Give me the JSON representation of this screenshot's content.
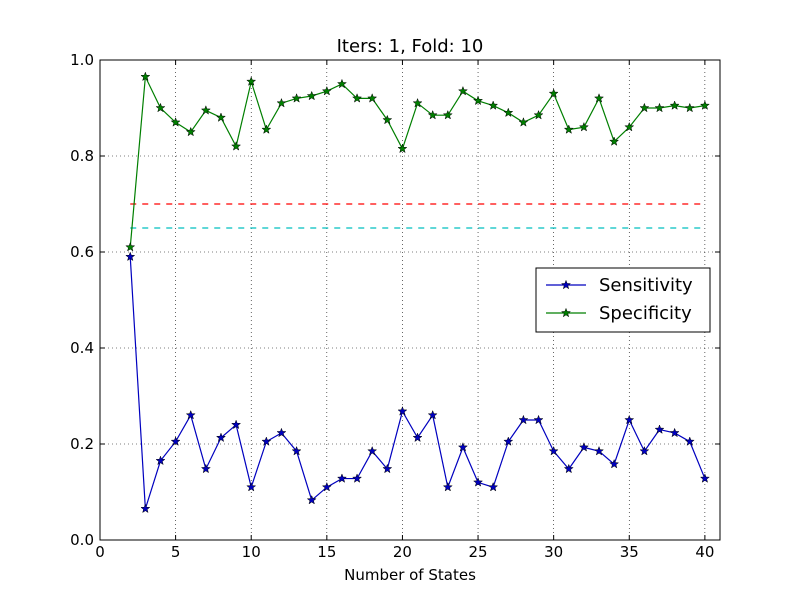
{
  "chart_data": {
    "type": "line",
    "title": "Iters: 1, Fold: 10",
    "xlabel": "Number of States",
    "ylabel": "",
    "xlim": [
      0,
      41
    ],
    "ylim": [
      0.0,
      1.0
    ],
    "xticks": [
      0,
      5,
      10,
      15,
      20,
      25,
      30,
      35,
      40
    ],
    "yticks": [
      0.0,
      0.2,
      0.4,
      0.6,
      0.8,
      1.0
    ],
    "xtick_labels": [
      "0",
      "5",
      "10",
      "15",
      "20",
      "25",
      "30",
      "35",
      "40"
    ],
    "ytick_labels": [
      "0.0",
      "0.2",
      "0.4",
      "0.6",
      "0.8",
      "1.0"
    ],
    "grid": true,
    "legend_position": "center-right",
    "x": [
      2,
      3,
      4,
      5,
      6,
      7,
      8,
      9,
      10,
      11,
      12,
      13,
      14,
      15,
      16,
      17,
      18,
      19,
      20,
      21,
      22,
      23,
      24,
      25,
      26,
      27,
      28,
      29,
      30,
      31,
      32,
      33,
      34,
      35,
      36,
      37,
      38,
      39,
      40
    ],
    "series": [
      {
        "name": "Sensitivity",
        "color": "#0000bf",
        "marker": "star",
        "values": [
          0.59,
          0.065,
          0.165,
          0.205,
          0.26,
          0.148,
          0.213,
          0.24,
          0.11,
          0.205,
          0.223,
          0.185,
          0.083,
          0.11,
          0.128,
          0.128,
          0.185,
          0.148,
          0.268,
          0.213,
          0.26,
          0.11,
          0.193,
          0.12,
          0.11,
          0.205,
          0.25,
          0.25,
          0.185,
          0.148,
          0.193,
          0.185,
          0.158,
          0.25,
          0.185,
          0.23,
          0.223,
          0.205,
          0.128
        ]
      },
      {
        "name": "Specificity",
        "color": "#007f00",
        "marker": "star",
        "values": [
          0.61,
          0.965,
          0.9,
          0.87,
          0.85,
          0.895,
          0.88,
          0.82,
          0.955,
          0.855,
          0.91,
          0.92,
          0.925,
          0.935,
          0.95,
          0.92,
          0.92,
          0.875,
          0.815,
          0.91,
          0.885,
          0.885,
          0.935,
          0.915,
          0.905,
          0.89,
          0.87,
          0.885,
          0.93,
          0.855,
          0.86,
          0.92,
          0.83,
          0.86,
          0.9,
          0.9,
          0.905,
          0.9,
          0.905
        ]
      }
    ],
    "reference_lines": [
      {
        "y": 0.7,
        "x_start": 2,
        "x_end": 40,
        "color": "#ff0000",
        "style": "dashed"
      },
      {
        "y": 0.65,
        "x_start": 2,
        "x_end": 40,
        "color": "#00bfbf",
        "style": "dashed"
      }
    ]
  }
}
